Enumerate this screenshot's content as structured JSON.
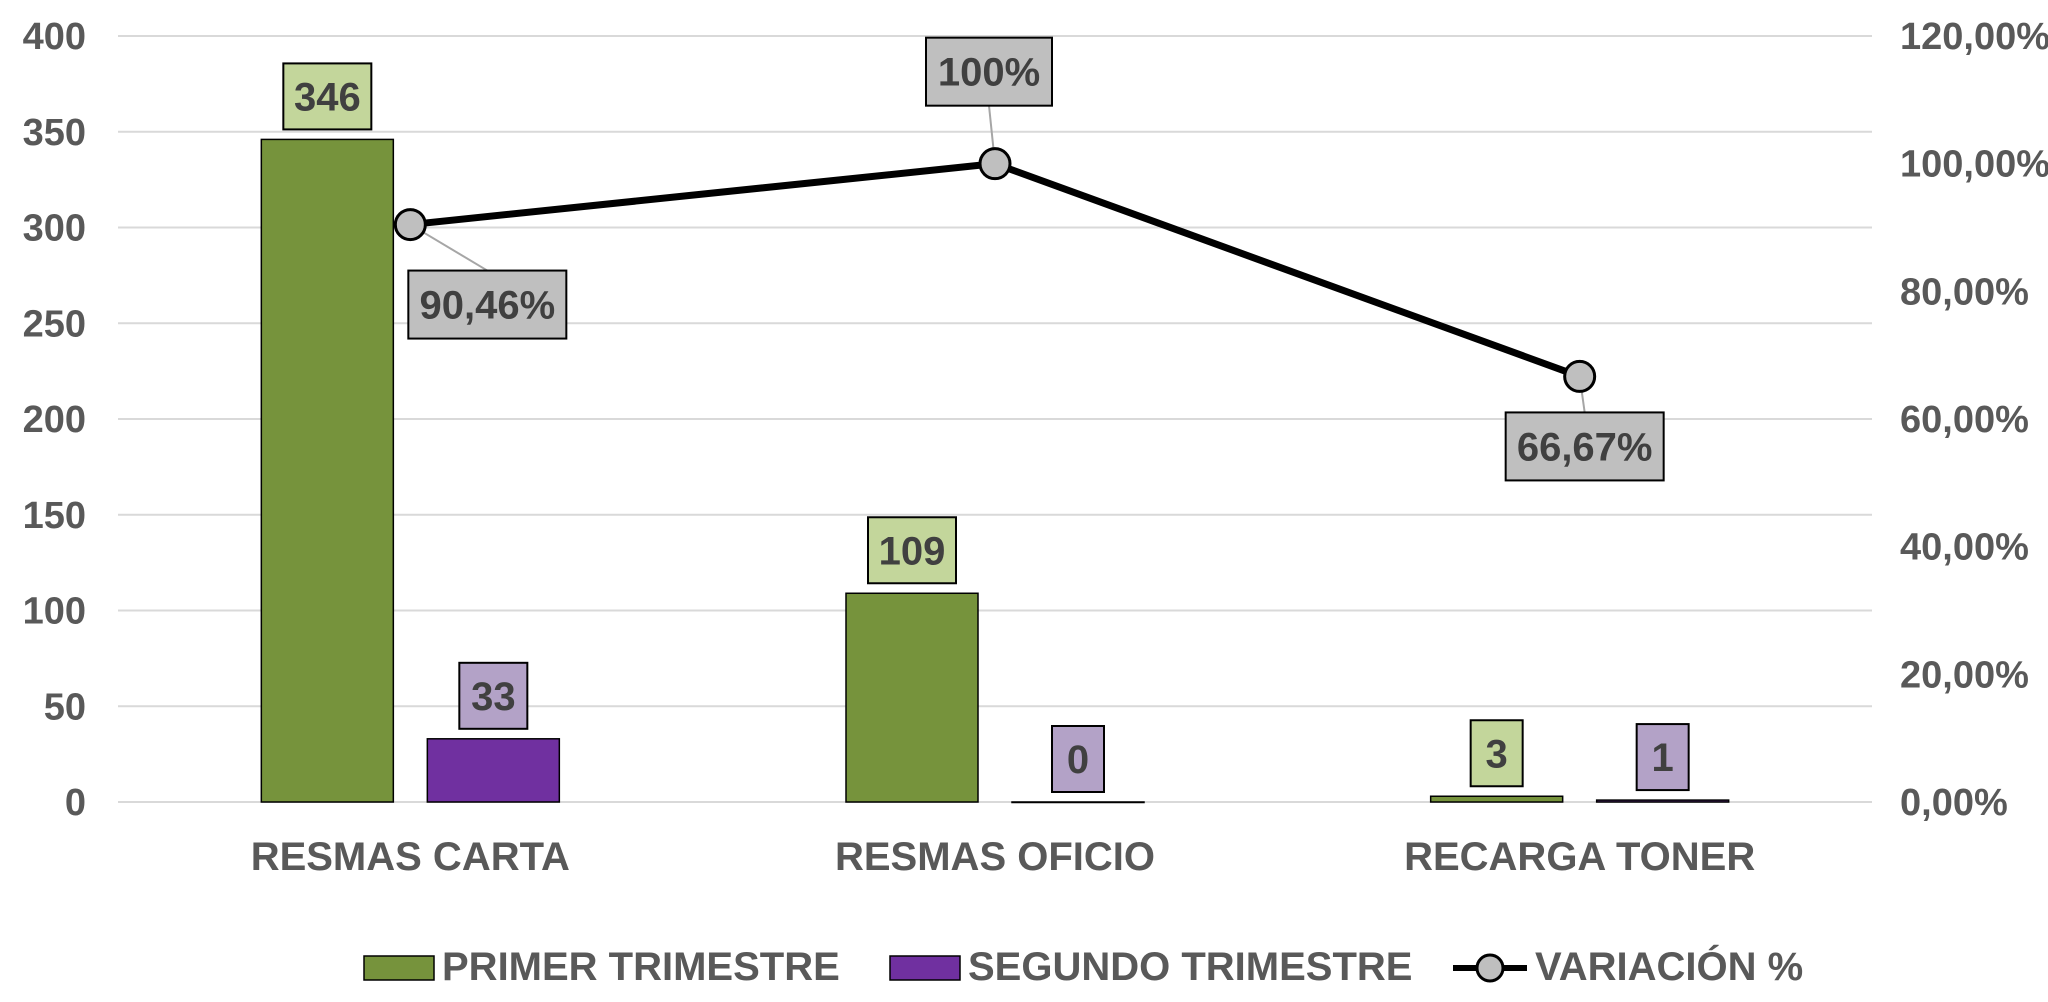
{
  "chart_data": {
    "type": "bar",
    "categories": [
      "RESMAS CARTA",
      "RESMAS OFICIO",
      "RECARGA TONER"
    ],
    "series": [
      {
        "name": "PRIMER TRIMESTRE",
        "values": [
          346,
          109,
          3
        ],
        "labels": [
          "346",
          "109",
          "3"
        ],
        "color": "#76933C",
        "label_bg": "#C3D69B"
      },
      {
        "name": "SEGUNDO TRIMESTRE",
        "values": [
          33,
          0,
          1
        ],
        "labels": [
          "33",
          "0",
          "1"
        ],
        "color": "#7030A0",
        "label_bg": "#B3A2C7"
      }
    ],
    "line_series": {
      "name": "VARIACIÓN %",
      "values": [
        90.46,
        100,
        66.67
      ],
      "labels": [
        "90,46%",
        "100%",
        "66,67%"
      ],
      "color": "#000000",
      "marker_color": "#BFBFBF",
      "label_bg": "#BFBFBF",
      "axis": "right"
    },
    "left_axis": {
      "ylim": [
        0,
        400
      ],
      "ticks": [
        "0",
        "50",
        "100",
        "150",
        "200",
        "250",
        "300",
        "350",
        "400"
      ]
    },
    "right_axis": {
      "ylim": [
        0,
        120
      ],
      "ticks": [
        "0,00%",
        "20,00%",
        "40,00%",
        "60,00%",
        "80,00%",
        "100,00%",
        "120,00%"
      ]
    },
    "grid": true,
    "legend_position": "bottom"
  }
}
